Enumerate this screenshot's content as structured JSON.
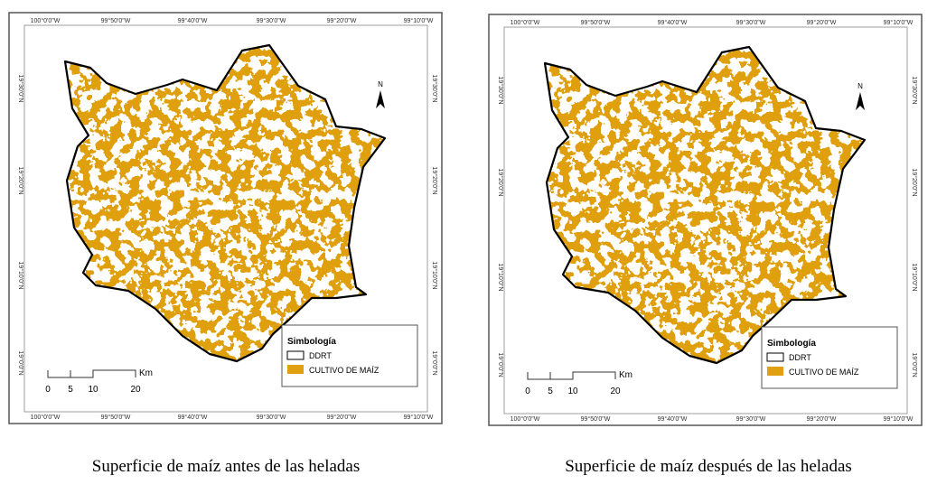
{
  "maps": [
    {
      "lon_labels": [
        "100°0'0\"W",
        "99°50'0\"W",
        "99°40'0\"W",
        "99°30'0\"W",
        "99°20'0\"W",
        "99°10'0\"W"
      ],
      "lat_labels": [
        "19°30'0\"N",
        "19°20'0\"N",
        "19°10'0\"N",
        "19°0'0\"N"
      ],
      "north": "N",
      "legend": {
        "title": "Simbología",
        "items": [
          "DDRT",
          "CULTIVO DE MAÍZ"
        ]
      },
      "scale": {
        "ticks": [
          "0",
          "5",
          "10",
          "20"
        ],
        "unit": "Km"
      },
      "caption": "Superficie de maíz antes de las heladas"
    },
    {
      "lon_labels": [
        "100°0'0\"W",
        "99°50'0\"W",
        "99°40'0\"W",
        "99°30'0\"W",
        "99°20'0\"W",
        "99°10'0\"W"
      ],
      "lat_labels": [
        "19°30'0\"N",
        "19°20'0\"N",
        "19°10'0\"N",
        "19°0'0\"N"
      ],
      "north": "N",
      "legend": {
        "title": "Simbología",
        "items": [
          "DDRT",
          "CULTIVO DE MAÍZ"
        ]
      },
      "scale": {
        "ticks": [
          "0",
          "5",
          "10",
          "20"
        ],
        "unit": "Km"
      },
      "caption": "Superficie de maíz después de las heladas"
    }
  ]
}
